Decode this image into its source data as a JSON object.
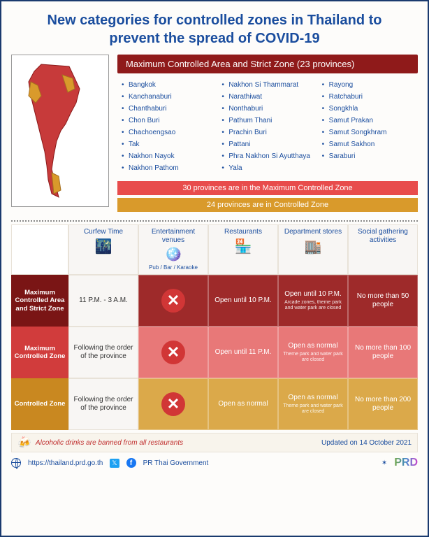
{
  "title": "New categories for controlled zones in Thailand to prevent the spread of COVID-19",
  "provinces": {
    "header": "Maximum Controlled Area and Strict Zone  (23 provinces)",
    "col1": [
      "Bangkok",
      "Kanchanaburi",
      "Chanthaburi",
      "Chon Buri",
      "Chachoengsao",
      "Tak",
      "Nakhon Nayok",
      "Nakhon Pathom"
    ],
    "col2": [
      "Nakhon Si Thammarat",
      "Narathiwat",
      "Nonthaburi",
      "Pathum Thani",
      "Prachin Buri",
      "Pattani",
      "Phra Nakhon Si Ayutthaya",
      "Yala"
    ],
    "col3": [
      "Rayong",
      "Ratchaburi",
      "Songkhla",
      "Samut Prakan",
      "Samut Songkhram",
      "Samut Sakhon",
      "Saraburi"
    ]
  },
  "banners": {
    "red": "30 provinces are in the Maximum Controlled Zone",
    "orange": "24 provinces are in Controlled Zone"
  },
  "columns": [
    {
      "title": "Curfew Time",
      "sub": "",
      "icon": "🌃"
    },
    {
      "title": "Entertainment venues",
      "sub": "Pub / Bar / Karaoke",
      "icon": "🪩"
    },
    {
      "title": "Restaurants",
      "sub": "",
      "icon": "🏪"
    },
    {
      "title": "Department stores",
      "sub": "",
      "icon": "🏬"
    },
    {
      "title": "Social gathering activities",
      "sub": "",
      "icon": ""
    }
  ],
  "rows": [
    {
      "label": "Maximum Controlled Area and Strict Zone",
      "cells": [
        {
          "text": "11 P.M. - 3 A.M.",
          "light": true
        },
        {
          "x": true
        },
        {
          "text": "Open until 10 P.M."
        },
        {
          "text": "Open until 10 P.M.",
          "sub": "Arcade zones, theme park and water park are closed"
        },
        {
          "text": "No more than 50 people"
        }
      ]
    },
    {
      "label": "Maximum Controlled Zone",
      "cells": [
        {
          "text": "Following the order of the province",
          "light": true
        },
        {
          "x": true
        },
        {
          "text": "Open until 11 P.M."
        },
        {
          "text": "Open as normal",
          "sub": "Theme park and water park are closed"
        },
        {
          "text": "No more than 100 people"
        }
      ]
    },
    {
      "label": "Controlled Zone",
      "cells": [
        {
          "text": "Following the order of the province",
          "light": true
        },
        {
          "x": true
        },
        {
          "text": "Open as normal"
        },
        {
          "text": "Open as normal",
          "sub": "Theme park and water park are closed"
        },
        {
          "text": "No more than 200 people"
        }
      ]
    }
  ],
  "alcohol": "Alcoholic drinks are banned from all restaurants",
  "updated": "Updated on 14 October 2021",
  "footer": {
    "url": "https://thailand.prd.go.th",
    "social": "PR Thai Government",
    "logo": "PRD"
  },
  "colors": {
    "strict": "#7a1515",
    "strict_cell": "#9e2a2a",
    "max": "#d13c3c",
    "max_cell": "#e87878",
    "ctrl": "#c98820",
    "ctrl_cell": "#dba94a"
  }
}
